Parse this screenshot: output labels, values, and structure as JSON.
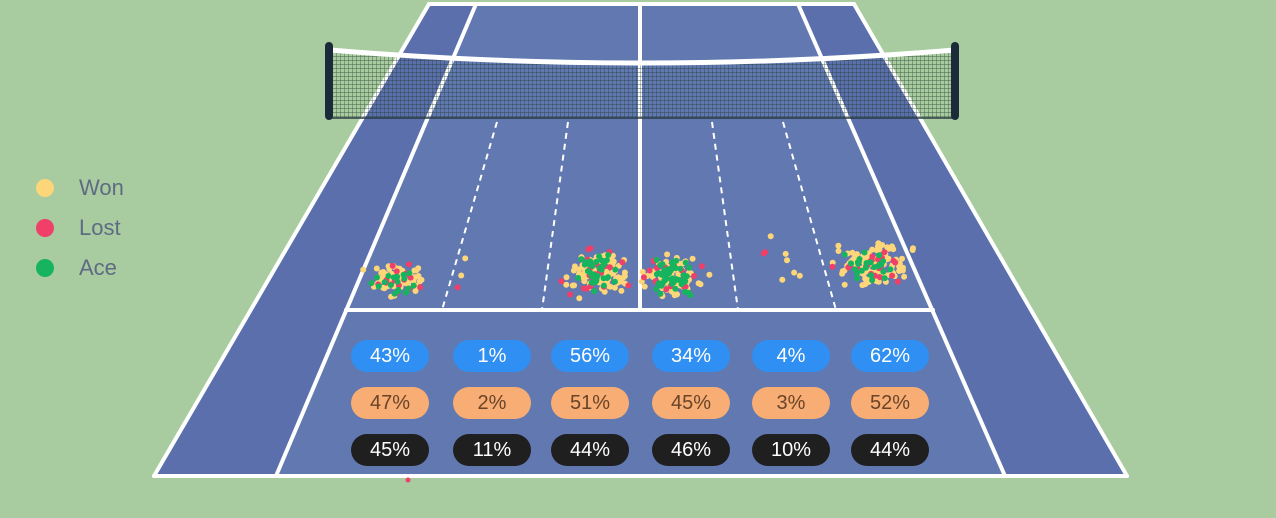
{
  "colors": {
    "background": "#a9cba0",
    "court": "#6278b0",
    "court_alley": "#5a6fab",
    "lines": "#ffffff",
    "net_post": "#1c2b3a",
    "won": "#fdd67a",
    "lost": "#f03f68",
    "ace": "#16b45e",
    "row1_pill": "#2f8ff2",
    "row2_pill": "#f7ad73",
    "row3_pill": "#1f1f1f"
  },
  "legend": [
    {
      "label": "Won",
      "color": "#fdd67a"
    },
    {
      "label": "Lost",
      "color": "#f03f68"
    },
    {
      "label": "Ace",
      "color": "#16b45e"
    }
  ],
  "chart_data": {
    "type": "scatter",
    "subtype": "serve-placement-court",
    "zones": 6,
    "series": [
      {
        "name": "Won",
        "color": "#fdd67a"
      },
      {
        "name": "Lost",
        "color": "#f03f68"
      },
      {
        "name": "Ace",
        "color": "#16b45e"
      }
    ],
    "clusters": [
      {
        "zone": 1,
        "won": 60,
        "lost": 16,
        "ace": 18
      },
      {
        "zone": 2,
        "won": 2,
        "lost": 1,
        "ace": 0
      },
      {
        "zone": 3,
        "won": 95,
        "lost": 22,
        "ace": 35
      },
      {
        "zone": 4,
        "won": 80,
        "lost": 18,
        "ace": 48
      },
      {
        "zone": 5,
        "won": 6,
        "lost": 2,
        "ace": 0
      },
      {
        "zone": 6,
        "won": 95,
        "lost": 22,
        "ace": 25
      }
    ],
    "rows": [
      {
        "values": [
          "43%",
          "1%",
          "56%",
          "34%",
          "4%",
          "62%"
        ]
      },
      {
        "values": [
          "47%",
          "2%",
          "51%",
          "45%",
          "3%",
          "52%"
        ]
      },
      {
        "values": [
          "45%",
          "11%",
          "44%",
          "46%",
          "10%",
          "44%"
        ]
      }
    ]
  }
}
